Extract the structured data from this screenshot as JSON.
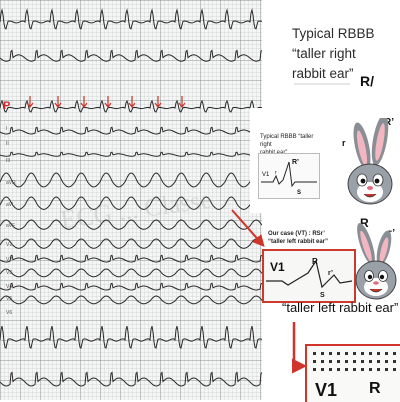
{
  "labels": {
    "p_wave": "P",
    "watermark": "ECG ... Classe",
    "leads": [
      "I",
      "II",
      "III",
      "aVR",
      "aVL",
      "aVF",
      "V1",
      "V2",
      "V3",
      "V4",
      "V5",
      "V6"
    ]
  },
  "top_panel": {
    "title_line1": "Typical RBBB “taller right",
    "title_line2": "rabbit ear”",
    "fragment": "R/"
  },
  "typical_panel": {
    "caption_line1": "Typical RBBB “taller right",
    "caption_line2": "rabbit ear”",
    "lead": "V1",
    "r": "r",
    "r_prime": "R’",
    "s": "S",
    "bunny_r": "r",
    "bunny_r_prime": "R’"
  },
  "case_panel": {
    "caption_line1": "Our case (VT) : RSr’",
    "caption_line2": "“taller left rabbit ear”",
    "lead": "V1",
    "r_big": "R",
    "r_prime": "r’",
    "s": "S",
    "bunny_r_big": "R",
    "bunny_r_prime": "r’"
  },
  "bottom_caption": "“taller left rabbit ear”",
  "zoom": {
    "lead": "V1",
    "r": "R"
  },
  "colors": {
    "accent_red": "#d0342a",
    "trace": "#2a2a2a",
    "bunny_gray": "#8a8f96"
  }
}
